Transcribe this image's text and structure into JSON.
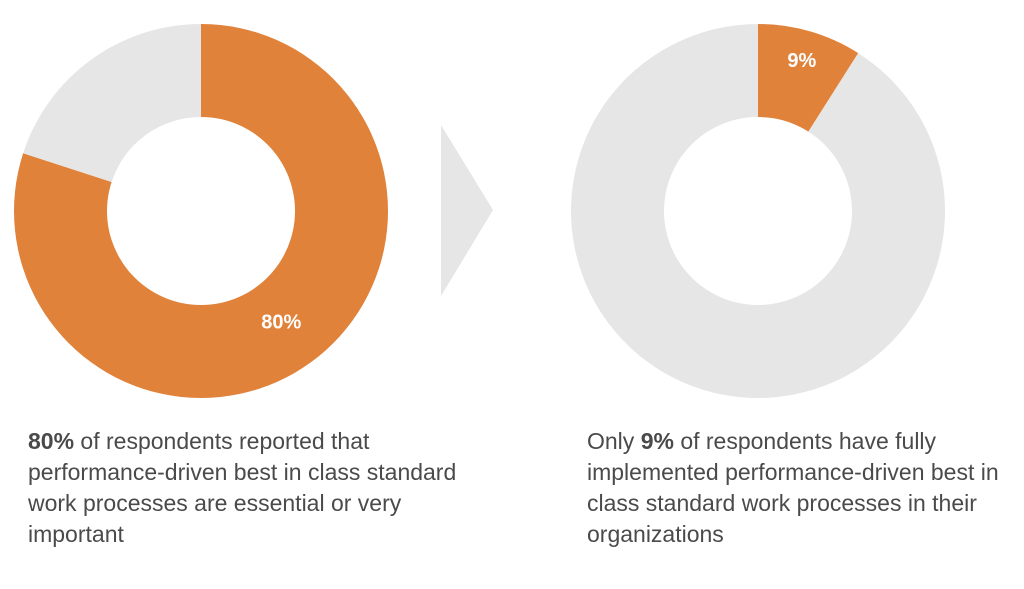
{
  "colors": {
    "highlight": "#E0823A",
    "rest": "#E6E6E6",
    "arrow": "#E6E6E6",
    "text": "#4A4A4A"
  },
  "chart_data": [
    {
      "type": "pie",
      "donut": true,
      "slices": [
        {
          "label": "80%",
          "value": 80,
          "color": "#E0823A"
        },
        {
          "value": 20,
          "color": "#E6E6E6"
        }
      ]
    },
    {
      "type": "pie",
      "donut": true,
      "slices": [
        {
          "label": "9%",
          "value": 9,
          "color": "#E0823A"
        },
        {
          "value": 91,
          "color": "#E6E6E6"
        }
      ]
    }
  ],
  "captions": {
    "left": {
      "strong": "80%",
      "rest": " of respondents reported that performance-driven best in class standard work processes are essential or very important"
    },
    "right": {
      "prefix": "Only ",
      "strong": "9%",
      "rest": " of respondents have fully implemented performance-driven best in class standard work processes in their organizations"
    }
  }
}
